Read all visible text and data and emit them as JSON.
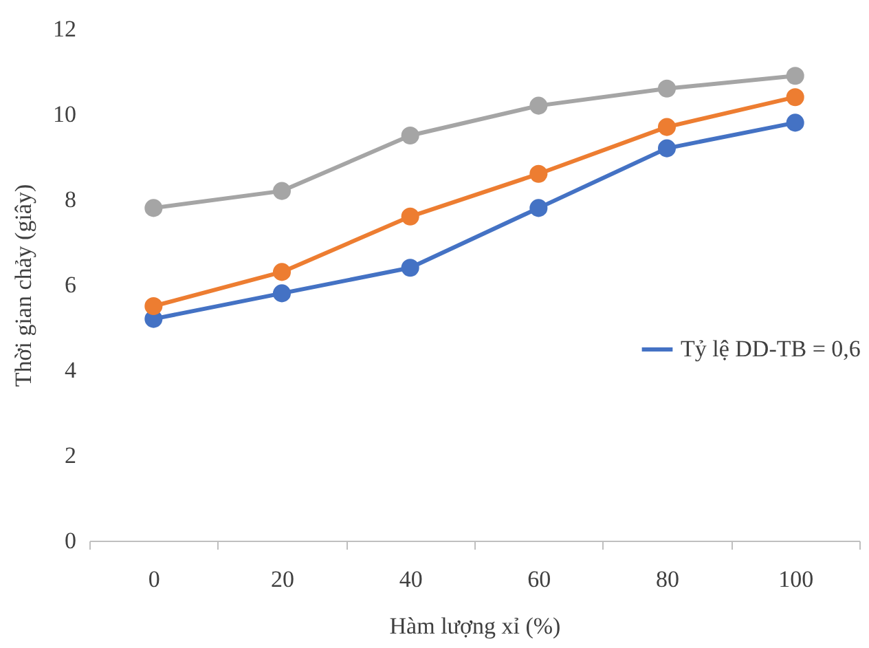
{
  "chart_data": {
    "type": "line",
    "xlabel": "Hàm lượng xỉ (%)",
    "ylabel": "Thời gian chảy (giây)",
    "categories": [
      "0",
      "20",
      "40",
      "60",
      "80",
      "100"
    ],
    "series": [
      {
        "name": "Tỷ lệ DD-TB = 0,6",
        "color": "#4472c4",
        "values": [
          5.2,
          5.8,
          6.4,
          7.8,
          9.2,
          9.8
        ]
      },
      {
        "color": "#ed7d31",
        "values": [
          5.5,
          6.3,
          7.6,
          8.6,
          9.7,
          10.4
        ]
      },
      {
        "color": "#a5a5a5",
        "values": [
          7.8,
          8.2,
          9.5,
          10.2,
          10.6,
          10.9
        ]
      }
    ],
    "ylim": [
      0,
      12
    ],
    "yticks": [
      0,
      2,
      4,
      6,
      8,
      10,
      12
    ],
    "legend": "right",
    "marker": "circle",
    "line_style": "solid"
  }
}
